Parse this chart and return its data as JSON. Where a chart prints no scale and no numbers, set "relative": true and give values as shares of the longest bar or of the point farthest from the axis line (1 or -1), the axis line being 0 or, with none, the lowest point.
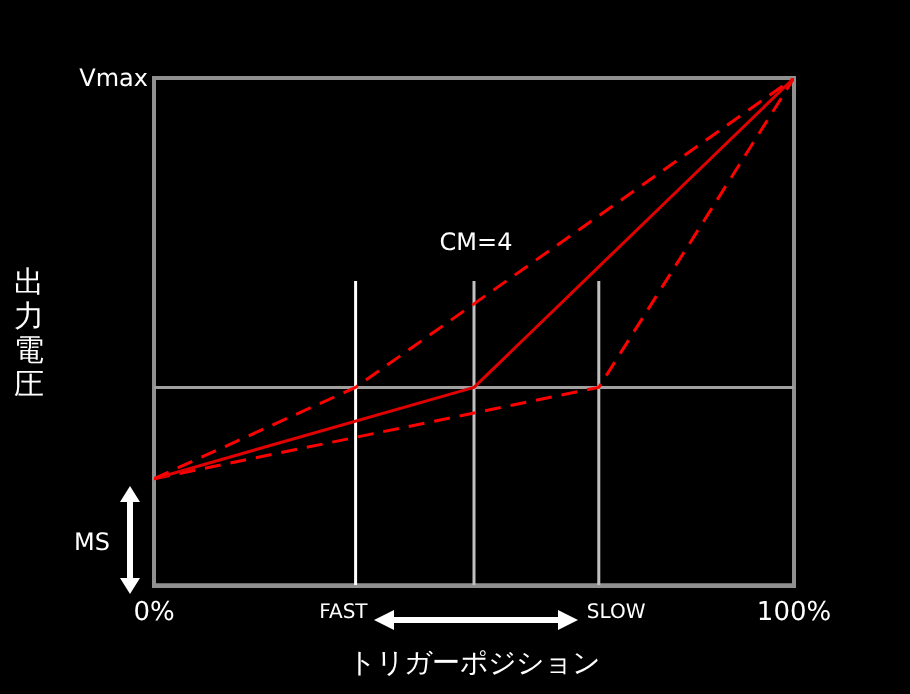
{
  "chart_data": {
    "type": "line",
    "relative": true,
    "xlabel": "トリガーポジション",
    "ylabel": "出力電圧",
    "xlim": [
      0,
      100
    ],
    "xticks": [
      {
        "value": 0,
        "label": "0%"
      },
      {
        "value": 100,
        "label": "100%"
      }
    ],
    "series": [
      {
        "color": "#ff0000",
        "line_style": "dashed",
        "x": [
          0,
          31.5,
          100
        ],
        "values": [
          0.21,
          0.39,
          1
        ]
      },
      {
        "color": "#e00000",
        "line_style": "solid",
        "x": [
          0,
          50,
          100
        ],
        "values": [
          0.21,
          0.39,
          1
        ]
      },
      {
        "color": "#ff0000",
        "line_style": "dashed",
        "x": [
          0,
          69.5,
          100
        ],
        "values": [
          0.21,
          0.39,
          1
        ]
      },
      {
        "color": "#ffffff",
        "line_style": "solid",
        "x": [
          31.5,
          31.5
        ],
        "values": [
          0,
          0.6
        ]
      },
      {
        "color": "#c0c0c0",
        "line_style": "solid",
        "x": [
          50,
          50
        ],
        "values": [
          0,
          0.6
        ]
      },
      {
        "color": "#c0c0c0",
        "line_style": "solid",
        "x": [
          69.5,
          69.5
        ],
        "values": [
          0,
          0.6
        ]
      }
    ],
    "ref_lines": [
      {
        "axis": "y",
        "value": 0.39,
        "color": "#a0a0a0"
      }
    ],
    "annotations": [
      "Vmax",
      "CM=4",
      "MS",
      {
        "text": "FAST",
        "x": 31.5,
        "y": 0
      },
      {
        "text": "SLOW",
        "x": 69.5,
        "y": 0
      }
    ],
    "marker": "none"
  }
}
